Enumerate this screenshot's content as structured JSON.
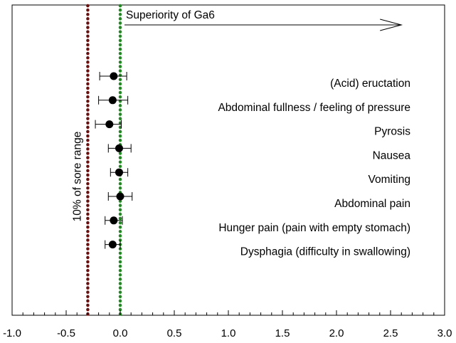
{
  "chart_data": {
    "type": "scatter",
    "subtype": "forest-plot",
    "xlim": [
      -1.0,
      3.0
    ],
    "x_ticks": [
      "-1.0",
      "-0.5",
      "0.0",
      "0.5",
      "1.0",
      "1.5",
      "2.0",
      "2.5",
      "3.0"
    ],
    "x_tick_values": [
      -1.0,
      -0.5,
      0.0,
      0.5,
      1.0,
      1.5,
      2.0,
      2.5,
      3.0
    ],
    "grid": false,
    "legend": "none",
    "categories": [
      "(Acid) eructation",
      "Abdominal fullness / feeling of pressure",
      "Pyrosis",
      "Nausea",
      "Vomiting",
      "Abdominal pain",
      "Hunger pain (pain with empty stomach)",
      "Dysphagia (difficulty in swallowing)"
    ],
    "estimates": [
      -0.06,
      -0.07,
      -0.1,
      -0.01,
      -0.01,
      0.0,
      -0.06,
      -0.07
    ],
    "ci_lower": [
      -0.19,
      -0.2,
      -0.23,
      -0.11,
      -0.09,
      -0.11,
      -0.14,
      -0.14
    ],
    "ci_upper": [
      0.06,
      0.07,
      0.01,
      0.1,
      0.07,
      0.11,
      0.02,
      0.0
    ],
    "reference_lines": [
      {
        "x": -0.3,
        "label": "10% of sore range",
        "color": "#6b0f0f",
        "style": "dotted"
      },
      {
        "x": 0.0,
        "label": "",
        "color": "#1f8a1f",
        "style": "dotted"
      }
    ],
    "annotation": {
      "text": "Superiority of Ga6",
      "arrow_from": 0.0,
      "arrow_to": 2.6
    }
  },
  "colors": {
    "marker": "#000000",
    "axis": "#000000",
    "limit_line": "#6b0f0f",
    "zero_line": "#1f8a1f"
  }
}
